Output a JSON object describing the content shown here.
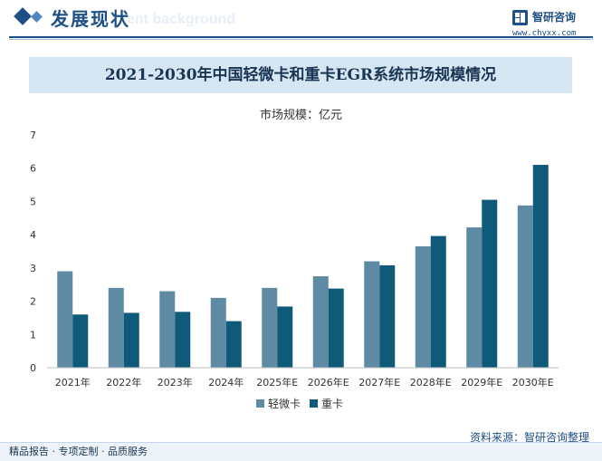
{
  "header": {
    "title": "发展现状",
    "ghost_text": "ent background"
  },
  "brand": {
    "name": "智研咨询",
    "url": "www.chyxx.com"
  },
  "chart_data": {
    "type": "bar",
    "title": "2021-2030年中国轻微卡和重卡EGR系统市场规模情况",
    "subtitle": "市场规模：亿元",
    "categories": [
      "2021年",
      "2022年",
      "2023年",
      "2024年",
      "2025年E",
      "2026年E",
      "2027年E",
      "2028年E",
      "2029年E",
      "2030年E"
    ],
    "series": [
      {
        "name": "轻微卡",
        "color": "#5f8aa3",
        "values": [
          2.9,
          2.4,
          2.3,
          2.1,
          2.4,
          2.75,
          3.2,
          3.65,
          4.22,
          4.88
        ]
      },
      {
        "name": "重卡",
        "color": "#0f5a79",
        "values": [
          1.6,
          1.65,
          1.68,
          1.4,
          1.84,
          2.38,
          3.08,
          3.96,
          5.05,
          6.1
        ]
      }
    ],
    "ylim": [
      0,
      7
    ],
    "yticks": [
      0,
      1,
      2,
      3,
      4,
      5,
      6,
      7
    ],
    "grid": false,
    "legend": "bottom-center"
  },
  "footer": {
    "left": "精品报告 · 专项定制 · 品质服务",
    "source": "资料来源：智研咨询整理"
  }
}
